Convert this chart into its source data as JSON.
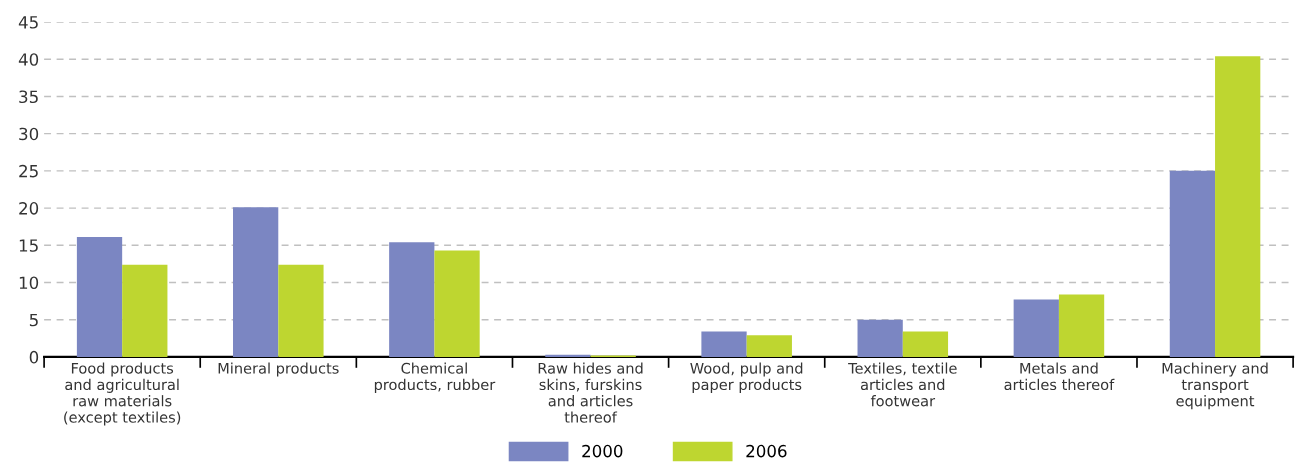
{
  "chart_data": {
    "type": "bar",
    "categories": [
      "Food products\nand agricultural\nraw materials\n(except textiles)",
      "Mineral products",
      "Chemical\nproducts, rubber",
      "Raw hides and\nskins, furskins\nand articles\nthereof",
      "Wood, pulp and\npaper products",
      "Textiles, textile\narticles and\nfootwear",
      "Metals and\narticles thereof",
      "Machinery and\ntransport\nequipment"
    ],
    "series": [
      {
        "name": "2000",
        "color": "#7b86c2",
        "values": [
          16.1,
          20.1,
          15.4,
          0.3,
          3.4,
          5.0,
          7.7,
          25.0
        ]
      },
      {
        "name": "2006",
        "color": "#bed630",
        "values": [
          12.4,
          12.4,
          14.3,
          0.2,
          2.9,
          3.4,
          8.4,
          40.4
        ]
      }
    ],
    "ylim": [
      0,
      45
    ],
    "yticks": [
      0,
      5,
      10,
      15,
      20,
      25,
      30,
      35,
      40,
      45
    ],
    "grid": "y",
    "legend": "bottom"
  }
}
